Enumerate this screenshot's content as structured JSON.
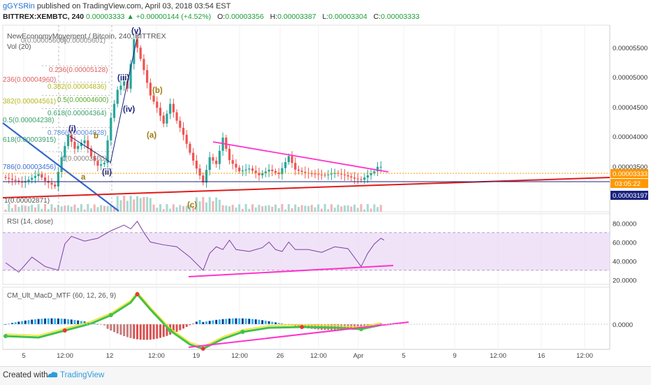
{
  "header": {
    "user": "gGYSRin",
    "published_text": "published on TradingView.com, April 03, 2018 03:54 EST",
    "symbol_interval": "BITTREX:XEMBTC, 240",
    "last": "0.00003333",
    "change": "▲ +0.00000144 (+4.52%)",
    "o_label": "O:",
    "o_value": "0.00003356",
    "h_label": "H:",
    "h_value": "0.00003387",
    "l_label": "L:",
    "l_value": "0.00003304",
    "c_label": "C:",
    "c_value": "0.00003333"
  },
  "main_pane": {
    "title": "NewEconomyMovement / Bitcoin, 240, BITTREX",
    "vol_label": "Vol (20)",
    "price_axis": [
      "0.00005500",
      "0.00005000",
      "0.00004500",
      "0.00004000",
      "0.00003500"
    ],
    "last_price_tag": "0.00003333",
    "countdown_tag": "03:05:22",
    "crosshair_price_tag": "0.00003197",
    "fib_labels": [
      "0(0.00005605)",
      "0(0.00005601)",
      "0.236(0.00005128)",
      "236(0.00004960)",
      "0.382(0.00004836)",
      "0.5(0.00004600)",
      "382(0.00004561)",
      "0.618(0.00004364)",
      "0.5(0.00004238)",
      "0.786(0.00004028)",
      "618(0.00003915)",
      "1(0.00003600)",
      "786(0.00003456)",
      "1(0.00002871)"
    ],
    "wave_labels": [
      "(v)",
      "(iii)",
      "(iv)",
      "(i)",
      "b",
      "a",
      "(ii)",
      "(b)",
      "(a)",
      "(c)"
    ]
  },
  "rsi_pane": {
    "title": "RSI (14, close)",
    "axis": [
      "80.0000",
      "60.0000",
      "40.0000",
      "20.0000"
    ]
  },
  "macd_pane": {
    "title": "CM_Ult_MacD_MTF (60, 12, 26, 9)",
    "axis": [
      "0.0000"
    ]
  },
  "time_axis": [
    "5",
    "12:00",
    "12",
    "12:00",
    "19",
    "12:00",
    "26",
    "12:00",
    "Apr",
    "5",
    "9",
    "12:00",
    "16",
    "12:00"
  ],
  "colors": {
    "bull": "#26a69a",
    "bear": "#ef5350",
    "trendline_magenta": "#ff33cc",
    "support_red": "#e01b1b",
    "blue_line": "#3366cc",
    "navy_line": "#1a237e",
    "rsi_band": "#e9d7f5",
    "last_price": "#ff9800"
  },
  "footer": {
    "created_with": "Created with",
    "brand": "TradingView"
  },
  "chart_data": {
    "type": "candlestick",
    "title": "NewEconomyMovement / Bitcoin, 240, BITTREX",
    "price_path": [
      [
        0,
        3.15e-05
      ],
      [
        3,
        3.1e-05
      ],
      [
        6,
        3.05e-05
      ],
      [
        8,
        3.1e-05
      ],
      [
        11,
        3.2e-05
      ],
      [
        13,
        3.08e-05
      ],
      [
        16,
        2.98e-05
      ],
      [
        18,
        3.5e-05
      ],
      [
        20,
        3.9e-05
      ],
      [
        22,
        3.65e-05
      ],
      [
        25,
        3.8e-05
      ],
      [
        27,
        3.52e-05
      ],
      [
        29,
        3.35e-05
      ],
      [
        31,
        3.4e-05
      ],
      [
        33,
        4.2e-05
      ],
      [
        35,
        4.7e-05
      ],
      [
        37,
        4.85e-05
      ],
      [
        38,
        4.72e-05
      ],
      [
        40,
        5.6e-05
      ],
      [
        41,
        5.45e-05
      ],
      [
        43,
        5.05e-05
      ],
      [
        45,
        4.6e-05
      ],
      [
        47,
        4.38e-05
      ],
      [
        49,
        4.1e-05
      ],
      [
        51,
        4.45e-05
      ],
      [
        53,
        4.15e-05
      ],
      [
        55,
        3.9e-05
      ],
      [
        57,
        3.58e-05
      ],
      [
        59,
        3.3e-05
      ],
      [
        61,
        3.05e-05
      ],
      [
        63,
        3.5e-05
      ],
      [
        65,
        3.38e-05
      ],
      [
        67,
        3.85e-05
      ],
      [
        69,
        3.45e-05
      ],
      [
        72,
        3.25e-05
      ],
      [
        75,
        3.3e-05
      ],
      [
        78,
        3.18e-05
      ],
      [
        81,
        3.28e-05
      ],
      [
        84,
        3.2e-05
      ],
      [
        87,
        3.52e-05
      ],
      [
        89,
        3.28e-05
      ],
      [
        92,
        3.22e-05
      ],
      [
        95,
        3.2e-05
      ],
      [
        98,
        3.18e-05
      ],
      [
        101,
        3.22e-05
      ],
      [
        104,
        3.18e-05
      ],
      [
        107,
        3.12e-05
      ],
      [
        109,
        3.1e-05
      ],
      [
        111,
        3.18e-05
      ],
      [
        113,
        3.25e-05
      ],
      [
        114,
        3.33e-05
      ]
    ],
    "rsi_path": [
      [
        0,
        38
      ],
      [
        4,
        28
      ],
      [
        8,
        44
      ],
      [
        12,
        34
      ],
      [
        16,
        30
      ],
      [
        18,
        58
      ],
      [
        20,
        66
      ],
      [
        24,
        61
      ],
      [
        28,
        64
      ],
      [
        32,
        72
      ],
      [
        36,
        78
      ],
      [
        38,
        74
      ],
      [
        40,
        82
      ],
      [
        42,
        70
      ],
      [
        44,
        60
      ],
      [
        48,
        57
      ],
      [
        52,
        55
      ],
      [
        56,
        44
      ],
      [
        60,
        30
      ],
      [
        62,
        48
      ],
      [
        64,
        55
      ],
      [
        66,
        52
      ],
      [
        68,
        62
      ],
      [
        70,
        52
      ],
      [
        74,
        50
      ],
      [
        78,
        54
      ],
      [
        80,
        60
      ],
      [
        82,
        52
      ],
      [
        84,
        50
      ],
      [
        86,
        60
      ],
      [
        88,
        52
      ],
      [
        92,
        52
      ],
      [
        96,
        49
      ],
      [
        100,
        55
      ],
      [
        104,
        53
      ],
      [
        108,
        34
      ],
      [
        110,
        48
      ],
      [
        112,
        58
      ],
      [
        114,
        64
      ],
      [
        115,
        62
      ]
    ],
    "rsi_ylim": [
      15,
      90
    ],
    "price_ylim": [
      2.78e-05,
      5.85e-05
    ],
    "annotations": {
      "rsi_band": [
        30,
        70
      ]
    }
  }
}
